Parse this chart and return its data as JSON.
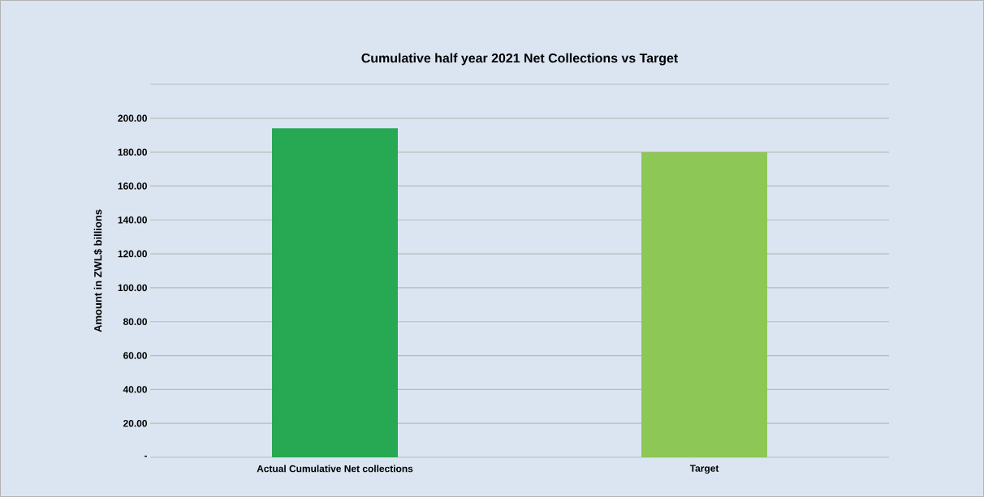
{
  "chart_data": {
    "type": "bar",
    "title": "Cumulative half year 2021 Net Collections vs Target",
    "ylabel": "Amount in ZWL$ billions",
    "categories": [
      "Actual Cumulative Net collections",
      "Target"
    ],
    "values": [
      194,
      180
    ],
    "colors": [
      "#27a852",
      "#8dc755"
    ],
    "ylim": [
      0,
      220
    ],
    "yticks": [
      {
        "value": 0,
        "label": "-"
      },
      {
        "value": 20,
        "label": "20.00"
      },
      {
        "value": 40,
        "label": "40.00"
      },
      {
        "value": 60,
        "label": "60.00"
      },
      {
        "value": 80,
        "label": "80.00"
      },
      {
        "value": 100,
        "label": "100.00"
      },
      {
        "value": 120,
        "label": "120.00"
      },
      {
        "value": 140,
        "label": "140.00"
      },
      {
        "value": 160,
        "label": "160.00"
      },
      {
        "value": 180,
        "label": "180.00"
      },
      {
        "value": 200,
        "label": "200.00"
      },
      {
        "value": 220,
        "label": null
      }
    ],
    "grid": "y"
  }
}
